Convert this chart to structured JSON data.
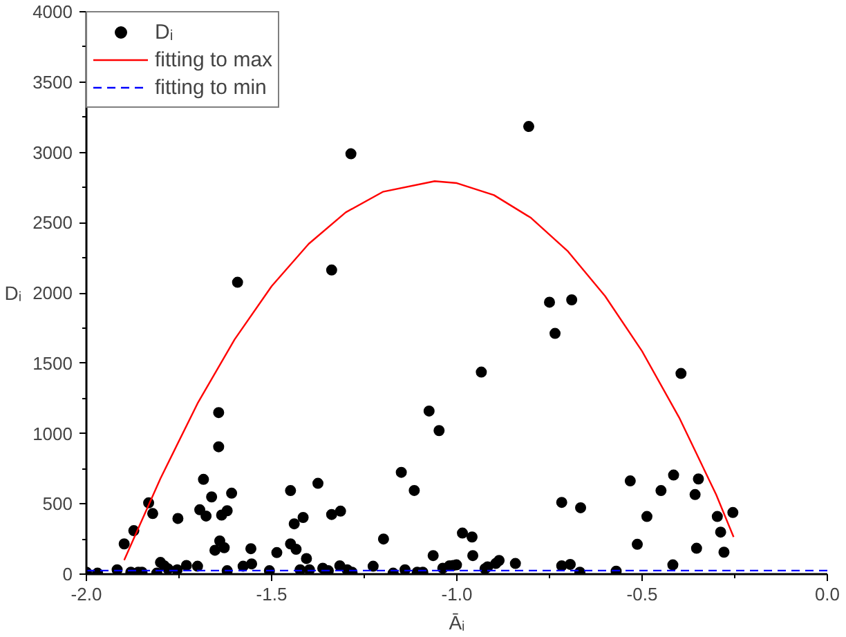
{
  "chart_data": {
    "type": "scatter",
    "xlabel": "Āᵢ",
    "ylabel": "Dᵢ",
    "xlim": [
      -2.0,
      0.0
    ],
    "ylim": [
      0,
      4000
    ],
    "xticks": [
      {
        "value": -2.0,
        "label": "-2.0"
      },
      {
        "value": -1.5,
        "label": "-1.5"
      },
      {
        "value": -1.0,
        "label": "-1.0"
      },
      {
        "value": -0.5,
        "label": "-0.5"
      },
      {
        "value": 0.0,
        "label": "0.0"
      }
    ],
    "yticks": [
      0,
      500,
      1000,
      1500,
      2000,
      2500,
      3000,
      3500,
      4000
    ],
    "grid": false,
    "legend": "top left",
    "series": [
      {
        "name": "Dᵢ",
        "marker": "circle",
        "color": "#000000",
        "x": [
          -2.0,
          -1.97,
          -1.917,
          -1.898,
          -1.88,
          -1.86,
          -1.85,
          -1.872,
          -1.832,
          -1.821,
          -1.81,
          -1.8,
          -1.79,
          -1.78,
          -1.755,
          -1.753,
          -1.73,
          -1.7,
          -1.694,
          -1.684,
          -1.677,
          -1.662,
          -1.653,
          -1.643,
          -1.643,
          -1.64,
          -1.628,
          -1.635,
          -1.62,
          -1.608,
          -1.62,
          -1.577,
          -1.556,
          -1.554,
          -1.506,
          -1.486,
          -1.449,
          -1.449,
          -1.439,
          -1.434,
          -1.423,
          -1.415,
          -1.406,
          -1.398,
          -1.375,
          -1.362,
          -1.347,
          -1.338,
          -1.314,
          -1.316,
          -1.296,
          -1.283,
          -1.226,
          -1.198,
          -1.172,
          -1.15,
          -1.14,
          -1.115,
          -1.107,
          -1.092,
          -1.075,
          -1.592,
          -1.338,
          -1.286,
          -0.806,
          -0.75,
          -0.69,
          -1.048,
          -1.064,
          -1.038,
          -1.02,
          -1.01,
          -1.001,
          -0.985,
          -0.959,
          -0.957,
          -0.934,
          -0.924,
          -0.917,
          -0.895,
          -0.886,
          -0.842,
          -0.735,
          -0.717,
          -0.717,
          -0.694,
          -0.666,
          -0.668,
          -0.57,
          -0.532,
          -0.513,
          -0.487,
          -0.449,
          -0.417,
          -0.415,
          -0.395,
          -0.357,
          -0.353,
          -0.348,
          -0.297,
          -0.288,
          -0.279,
          -0.255
        ],
        "values": [
          14,
          7,
          31,
          215,
          14,
          14,
          14,
          309,
          507,
          431,
          7,
          83,
          59,
          38,
          31,
          396,
          62,
          56,
          458,
          674,
          413,
          549,
          170,
          1149,
          906,
          236,
          188,
          420,
          451,
          576,
          24,
          56,
          181,
          73,
          24,
          153,
          594,
          215,
          358,
          177,
          31,
          403,
          111,
          31,
          646,
          42,
          24,
          424,
          448,
          59,
          31,
          14,
          56,
          250,
          7,
          724,
          31,
          595,
          14,
          14,
          1160,
          2076,
          2163,
          2990,
          3184,
          1934,
          1951,
          1021,
          132,
          42,
          59,
          62,
          66,
          292,
          264,
          132,
          1437,
          38,
          52,
          76,
          97,
          76,
          1712,
          510,
          59,
          69,
          472,
          14,
          21,
          663,
          212,
          410,
          594,
          66,
          705,
          1427,
          566,
          184,
          677,
          410,
          299,
          156,
          438
        ]
      },
      {
        "name": "fitting to max",
        "type": "line",
        "marker": "none",
        "color": "#ff0000",
        "line_style": "solid",
        "x": [
          -1.898,
          -1.8,
          -1.7,
          -1.6,
          -1.5,
          -1.4,
          -1.3,
          -1.2,
          -1.06,
          -1.0,
          -0.9,
          -0.8,
          -0.7,
          -0.6,
          -0.5,
          -0.4,
          -0.3,
          -0.253
        ],
        "values": [
          100,
          681,
          1214,
          1669,
          2048,
          2349,
          2573,
          2719,
          2795,
          2781,
          2696,
          2534,
          2295,
          1978,
          1585,
          1114,
          565,
          264
        ]
      },
      {
        "name": "fitting to min",
        "type": "line",
        "marker": "none",
        "color": "#0000ff",
        "line_style": "dashed",
        "x": [
          -2.0,
          0.0
        ],
        "values": [
          25,
          25
        ]
      }
    ]
  }
}
